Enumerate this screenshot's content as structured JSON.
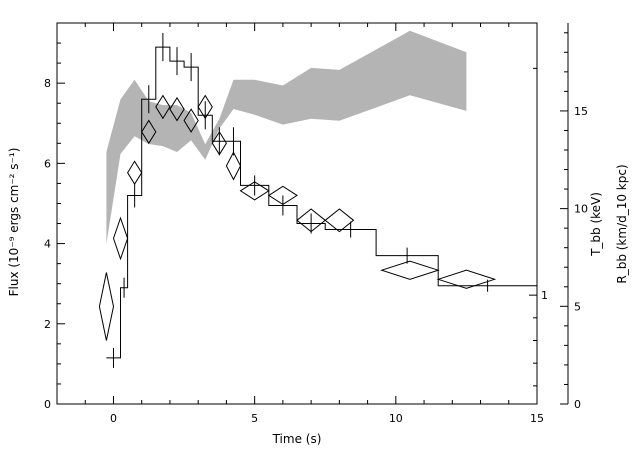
{
  "chart_data": {
    "type": "line",
    "title": "",
    "xlabel": "Time (s)",
    "ylabel_left": "Flux (10⁻⁹ ergs cm⁻² s⁻¹)",
    "ylabel_right_t": "T_bb (keV)",
    "ylabel_right_r": "R_bb (km/d_10 kpc)",
    "xlim": [
      -2,
      15
    ],
    "ylim_flux": [
      0,
      9.5
    ],
    "ylim_r": [
      0,
      19.5
    ],
    "ylim_t": [
      0.52,
      2.2
    ],
    "grid": false,
    "x_ticks": [
      0,
      5,
      10,
      15
    ],
    "x_tick_labels": [
      "0",
      "5",
      "10",
      "15"
    ],
    "flux_ticks": [
      0,
      2,
      4,
      6,
      8
    ],
    "flux_tick_labels": [
      "0",
      "2",
      "4",
      "6",
      "8"
    ],
    "r_ticks": [
      0,
      5,
      10,
      15
    ],
    "r_tick_labels": [
      "0",
      "5",
      "10",
      "15"
    ],
    "t_ticks": [
      1
    ],
    "t_tick_labels": [
      "1"
    ],
    "flux_series": [
      {
        "x0": -0.25,
        "x1": 0.25,
        "y": 1.15,
        "yerr": 0.25
      },
      {
        "x0": 0.25,
        "x1": 0.5,
        "y": 2.9,
        "yerr": 0.25
      },
      {
        "x0": 0.5,
        "x1": 1.0,
        "y": 5.2,
        "yerr": 0.3
      },
      {
        "x0": 1.0,
        "x1": 1.5,
        "y": 7.6,
        "yerr": 0.35
      },
      {
        "x0": 1.5,
        "x1": 2.0,
        "y": 8.9,
        "yerr": 0.35
      },
      {
        "x0": 2.0,
        "x1": 2.5,
        "y": 8.55,
        "yerr": 0.35
      },
      {
        "x0": 2.5,
        "x1": 3.0,
        "y": 8.4,
        "yerr": 0.35
      },
      {
        "x0": 3.0,
        "x1": 3.5,
        "y": 7.2,
        "yerr": 0.35
      },
      {
        "x0": 3.5,
        "x1": 4.0,
        "y": 6.55,
        "yerr": 0.35
      },
      {
        "x0": 4.0,
        "x1": 4.5,
        "y": 6.55,
        "yerr": 0.35
      },
      {
        "x0": 4.5,
        "x1": 5.5,
        "y": 5.45,
        "yerr": 0.25
      },
      {
        "x0": 5.5,
        "x1": 6.5,
        "y": 4.95,
        "yerr": 0.25
      },
      {
        "x0": 6.5,
        "x1": 7.5,
        "y": 4.5,
        "yerr": 0.25
      },
      {
        "x0": 7.5,
        "x1": 9.3,
        "y": 4.35,
        "yerr": 0.2
      },
      {
        "x0": 9.3,
        "x1": 11.5,
        "y": 3.7,
        "yerr": 0.2
      },
      {
        "x0": 11.5,
        "x1": 15.0,
        "y": 2.95,
        "yerr": 0.15
      }
    ],
    "radius_band": {
      "x": [
        -0.25,
        0.25,
        0.75,
        1.25,
        1.75,
        2.25,
        2.75,
        3.25,
        3.75,
        4.25,
        5.0,
        6.0,
        7.0,
        8.0,
        10.5,
        12.5
      ],
      "upper": [
        12.9,
        15.6,
        16.6,
        15.5,
        15.3,
        15.3,
        14.9,
        13.3,
        14.6,
        16.6,
        16.6,
        16.3,
        17.2,
        17.1,
        19.1,
        18.0
      ],
      "lower": [
        8.2,
        12.8,
        13.7,
        13.3,
        13.2,
        12.9,
        13.5,
        12.5,
        14.1,
        15.1,
        14.8,
        14.3,
        14.6,
        14.5,
        15.8,
        15.0
      ]
    },
    "temperature_series": [
      {
        "x": -0.25,
        "xerr": 0.25,
        "y": 0.95,
        "yerr": 0.15
      },
      {
        "x": 0.25,
        "xerr": 0.25,
        "y": 1.25,
        "yerr": 0.09
      },
      {
        "x": 0.75,
        "xerr": 0.25,
        "y": 1.54,
        "yerr": 0.05
      },
      {
        "x": 1.25,
        "xerr": 0.25,
        "y": 1.72,
        "yerr": 0.05
      },
      {
        "x": 1.75,
        "xerr": 0.25,
        "y": 1.83,
        "yerr": 0.05
      },
      {
        "x": 2.25,
        "xerr": 0.25,
        "y": 1.82,
        "yerr": 0.05
      },
      {
        "x": 2.75,
        "xerr": 0.25,
        "y": 1.77,
        "yerr": 0.05
      },
      {
        "x": 3.25,
        "xerr": 0.25,
        "y": 1.83,
        "yerr": 0.05
      },
      {
        "x": 3.75,
        "xerr": 0.25,
        "y": 1.67,
        "yerr": 0.05
      },
      {
        "x": 4.25,
        "xerr": 0.25,
        "y": 1.57,
        "yerr": 0.06
      },
      {
        "x": 5.0,
        "xerr": 0.5,
        "y": 1.46,
        "yerr": 0.04
      },
      {
        "x": 6.0,
        "xerr": 0.5,
        "y": 1.44,
        "yerr": 0.04
      },
      {
        "x": 7.0,
        "xerr": 0.5,
        "y": 1.33,
        "yerr": 0.05
      },
      {
        "x": 8.0,
        "xerr": 0.5,
        "y": 1.33,
        "yerr": 0.05
      },
      {
        "x": 10.5,
        "xerr": 1.0,
        "y": 1.11,
        "yerr": 0.04
      },
      {
        "x": 12.5,
        "xerr": 1.0,
        "y": 1.07,
        "yerr": 0.04
      }
    ],
    "colors": {
      "band": "#b4b4b4",
      "line": "#000000",
      "background": "#ffffff"
    }
  }
}
